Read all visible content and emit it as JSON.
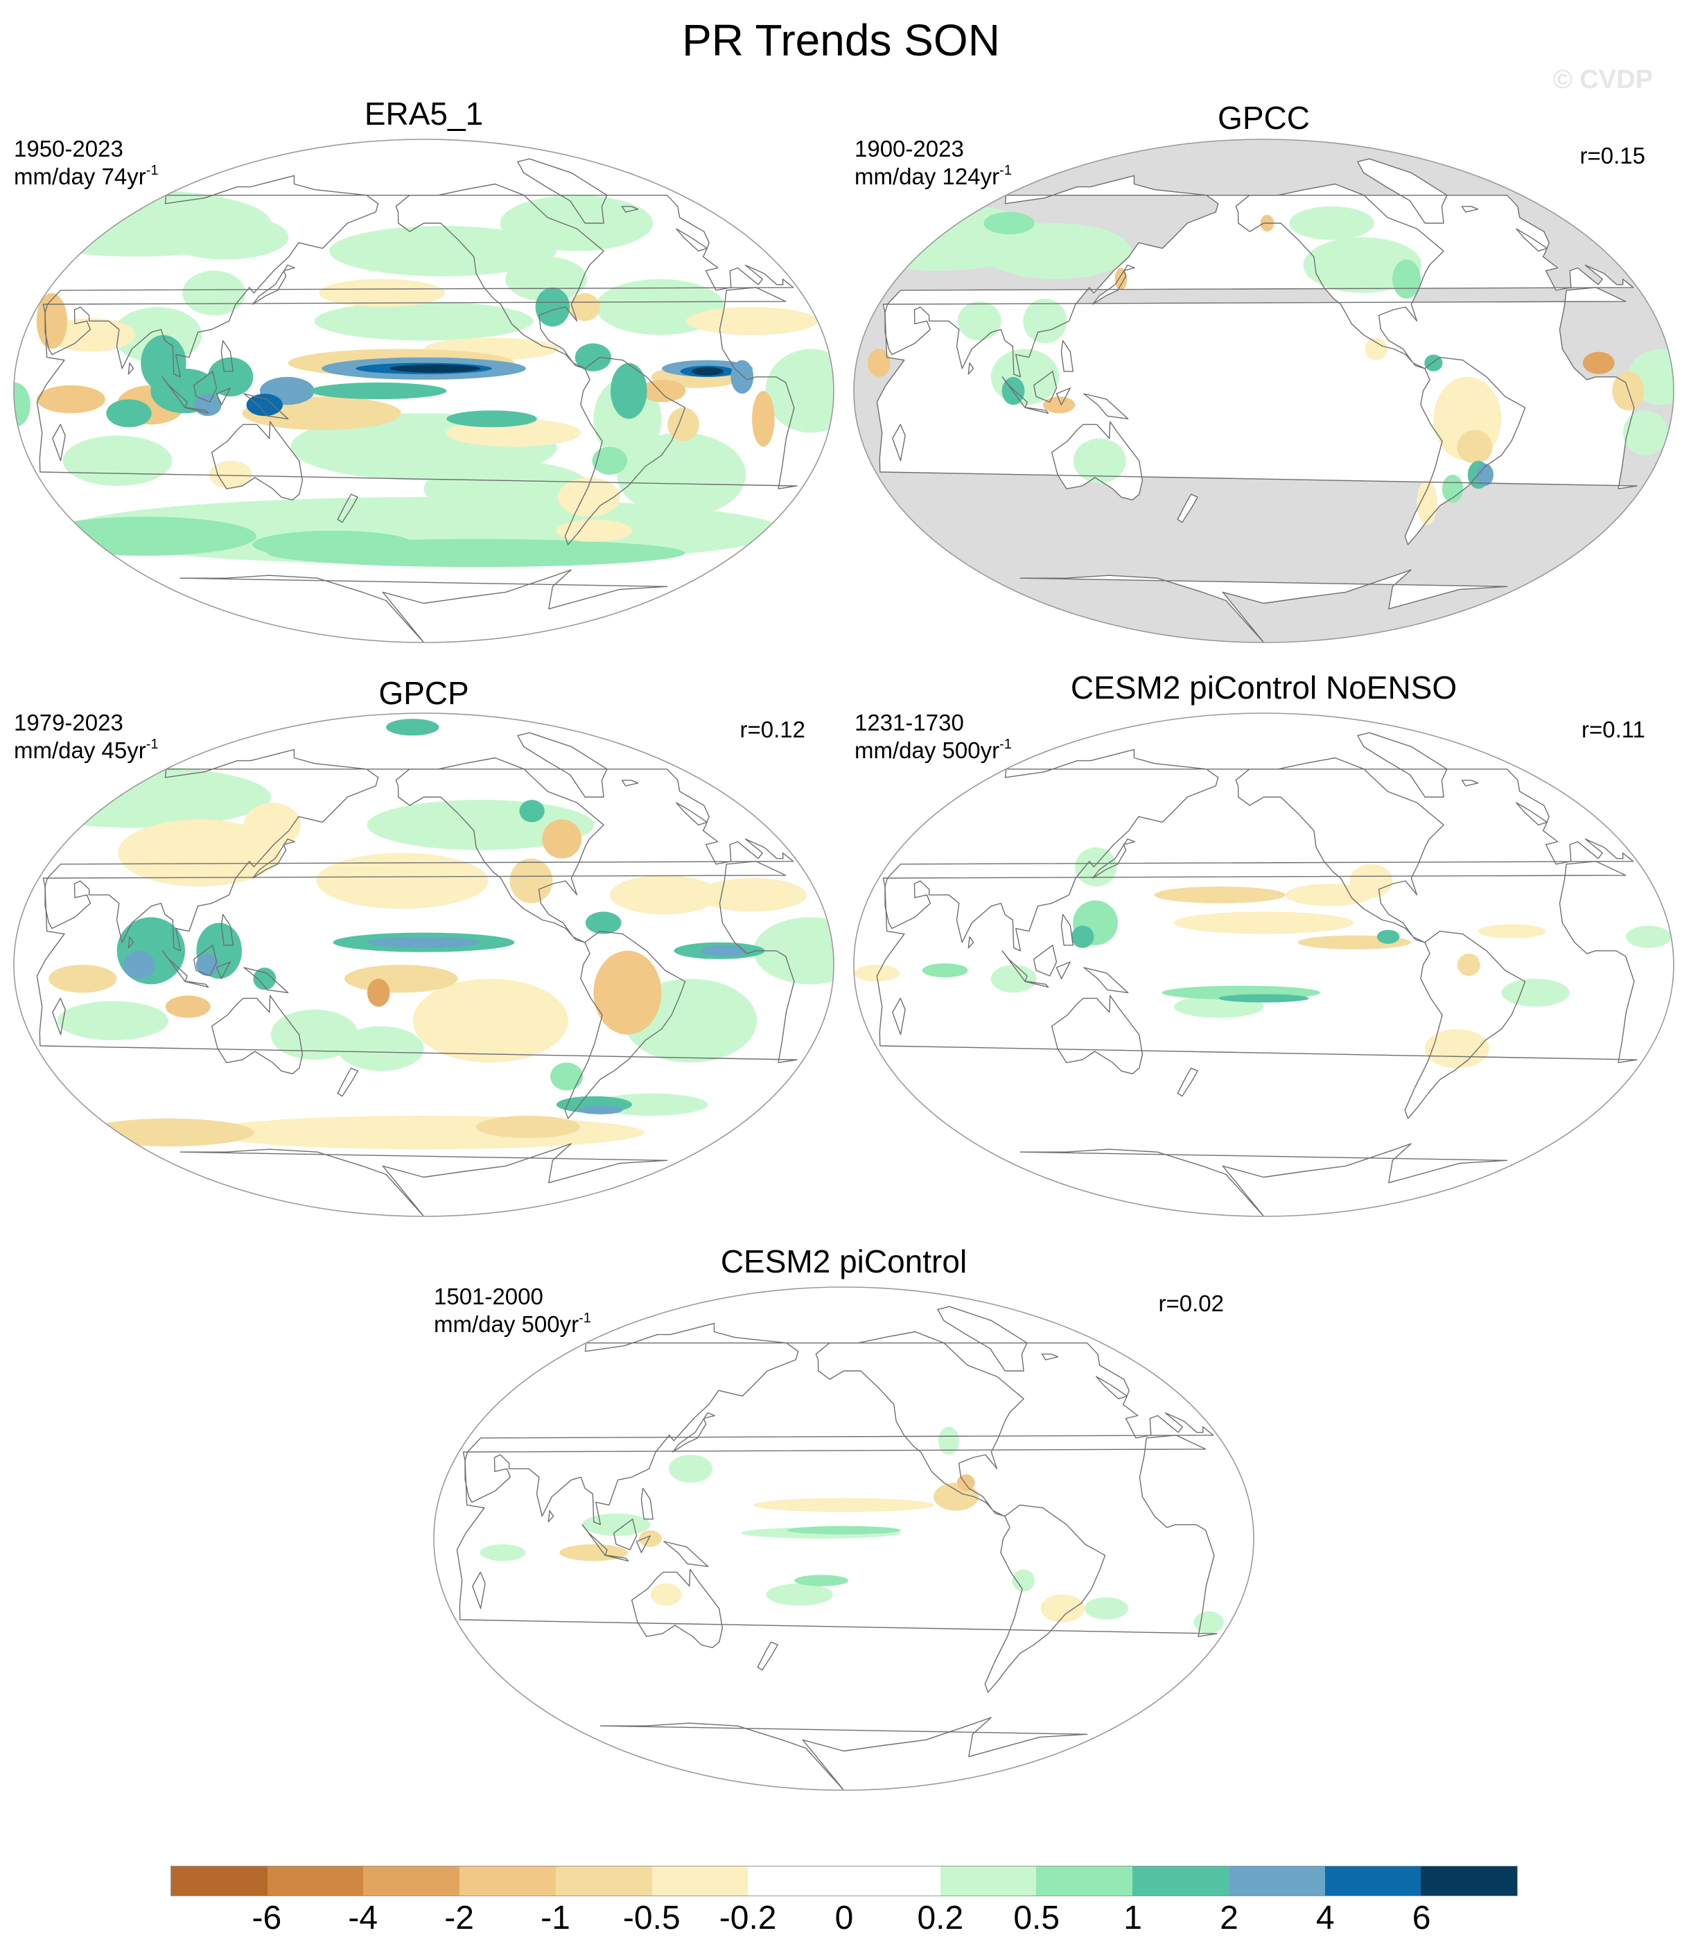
{
  "title": "PR Trends SON",
  "watermark": "© CVDP",
  "colors": {
    "land_ocean_bg": "#ffffff",
    "no_data": "#dcdcdc",
    "coast": "#6e6e6e",
    "outline": "#9a9a9a"
  },
  "colorbar": {
    "colors": [
      "#b5692a",
      "#cf8742",
      "#e2a55f",
      "#f1c885",
      "#f4dc9f",
      "#fcefc0",
      "#ffffff",
      "#ffffff",
      "#c8f7cf",
      "#93e8b3",
      "#53c2a2",
      "#6ba5c8",
      "#0b6bab",
      "#053a5c"
    ],
    "labels": [
      "-6",
      "-4",
      "-2",
      "-1",
      "-0.5",
      "-0.2",
      "0",
      "0.2",
      "0.5",
      "1",
      "2",
      "4",
      "6"
    ]
  },
  "panels": [
    {
      "id": "era5",
      "title": "ERA5_1",
      "period": "1950-2023",
      "units": "mm/day 74yr",
      "units_exp": "-1",
      "r": "",
      "style": "era5"
    },
    {
      "id": "gpcc",
      "title": "GPCC",
      "period": "1900-2023",
      "units": "mm/day 124yr",
      "units_exp": "-1",
      "r": "r=0.15",
      "style": "gpcc"
    },
    {
      "id": "gpcp",
      "title": "GPCP",
      "period": "1979-2023",
      "units": "mm/day 45yr",
      "units_exp": "-1",
      "r": "r=0.12",
      "style": "gpcp"
    },
    {
      "id": "noenso",
      "title": "CESM2 piControl NoENSO",
      "period": "1231-1730",
      "units": "mm/day 500yr",
      "units_exp": "-1",
      "r": "r=0.11",
      "style": "noenso"
    },
    {
      "id": "picontrol",
      "title": "CESM2 piControl",
      "period": "1501-2000",
      "units": "mm/day 500yr",
      "units_exp": "-1",
      "r": "r=0.02",
      "style": "picontrol"
    }
  ]
}
